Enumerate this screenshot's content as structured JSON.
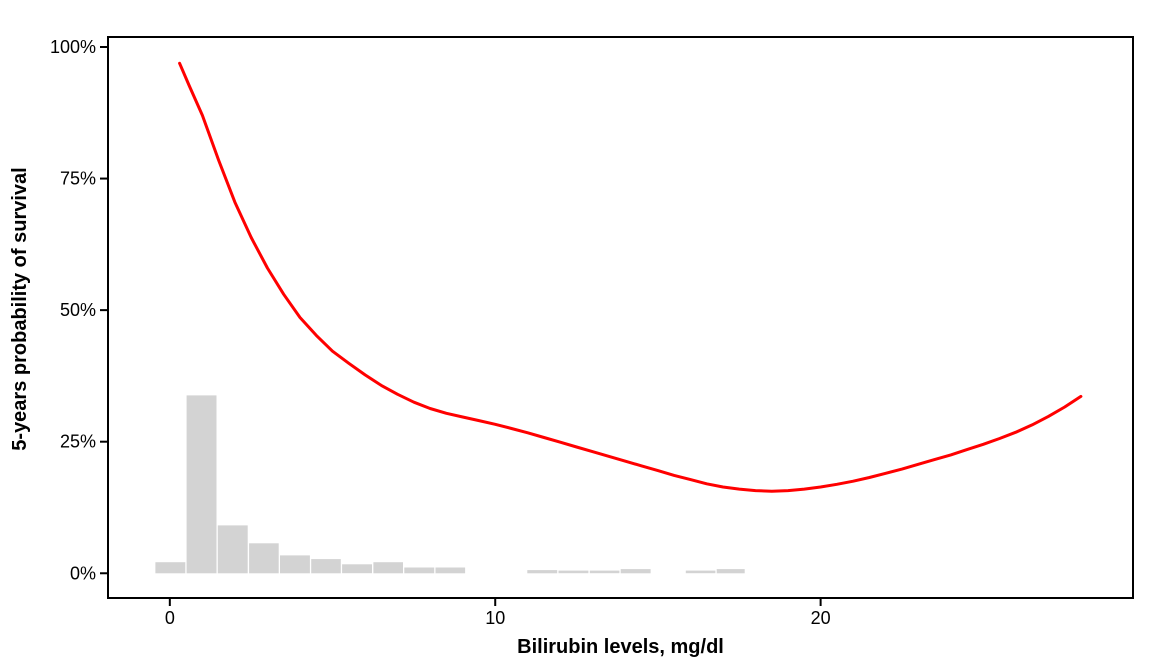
{
  "figure": {
    "x_axis_title": "Bilirubin levels, mg/dl",
    "y_axis_title": "5-years probability of survival"
  },
  "colors": {
    "curve": "#FF0000",
    "histogram_fill": "#D3D3D3",
    "axis": "#000000",
    "background": "#FFFFFF"
  },
  "chart_data": {
    "type": "line",
    "title": "",
    "xlabel": "Bilirubin levels, mg/dl",
    "ylabel": "5-years probability of survival",
    "grid": false,
    "legend": false,
    "xlim": [
      -1.9,
      29.6
    ],
    "ylim": [
      -4.7,
      101.9
    ],
    "x_ticks": [
      {
        "value": 0,
        "label": "0"
      },
      {
        "value": 10,
        "label": "10"
      },
      {
        "value": 20,
        "label": "20"
      }
    ],
    "y_ticks": [
      {
        "value": 0,
        "label": "0%"
      },
      {
        "value": 25,
        "label": "25%"
      },
      {
        "value": 50,
        "label": "50%"
      },
      {
        "value": 75,
        "label": "75%"
      },
      {
        "value": 100,
        "label": "100%"
      }
    ],
    "series": [
      {
        "name": "smoothed-survival-curve",
        "color": "#FF0000",
        "points": [
          [
            0.3,
            96.9
          ],
          [
            0.6,
            92.6
          ],
          [
            1.0,
            87.0
          ],
          [
            1.5,
            78.5
          ],
          [
            2.0,
            70.5
          ],
          [
            2.5,
            63.8
          ],
          [
            3.0,
            58.0
          ],
          [
            3.5,
            53.0
          ],
          [
            4.0,
            48.6
          ],
          [
            4.5,
            45.2
          ],
          [
            5.0,
            42.2
          ],
          [
            5.5,
            39.9
          ],
          [
            6.0,
            37.7
          ],
          [
            6.5,
            35.7
          ],
          [
            7.0,
            34.0
          ],
          [
            7.5,
            32.5
          ],
          [
            8.0,
            31.3
          ],
          [
            8.5,
            30.4
          ],
          [
            9.0,
            29.7
          ],
          [
            9.5,
            29.0
          ],
          [
            10.0,
            28.3
          ],
          [
            10.5,
            27.5
          ],
          [
            11.0,
            26.7
          ],
          [
            11.5,
            25.8
          ],
          [
            12.0,
            24.9
          ],
          [
            12.5,
            24.0
          ],
          [
            13.0,
            23.1
          ],
          [
            13.5,
            22.2
          ],
          [
            14.0,
            21.3
          ],
          [
            14.5,
            20.4
          ],
          [
            15.0,
            19.5
          ],
          [
            15.5,
            18.6
          ],
          [
            16.0,
            17.8
          ],
          [
            16.5,
            17.0
          ],
          [
            17.0,
            16.4
          ],
          [
            17.5,
            16.0
          ],
          [
            18.0,
            15.7
          ],
          [
            18.5,
            15.6
          ],
          [
            19.0,
            15.7
          ],
          [
            19.5,
            16.0
          ],
          [
            20.0,
            16.4
          ],
          [
            20.5,
            16.9
          ],
          [
            21.0,
            17.5
          ],
          [
            21.5,
            18.2
          ],
          [
            22.0,
            19.0
          ],
          [
            22.5,
            19.8
          ],
          [
            23.0,
            20.7
          ],
          [
            23.5,
            21.6
          ],
          [
            24.0,
            22.5
          ],
          [
            24.5,
            23.5
          ],
          [
            25.0,
            24.5
          ],
          [
            25.5,
            25.6
          ],
          [
            26.0,
            26.8
          ],
          [
            26.5,
            28.2
          ],
          [
            27.0,
            29.8
          ],
          [
            27.5,
            31.6
          ],
          [
            28.0,
            33.6
          ]
        ]
      }
    ],
    "histogram": {
      "name": "bilirubin-distribution",
      "color": "#D3D3D3",
      "bars": [
        {
          "x0": -0.46,
          "x1": 0.49,
          "height": 2.1
        },
        {
          "x0": 0.5,
          "x1": 1.45,
          "height": 33.8
        },
        {
          "x0": 1.46,
          "x1": 2.41,
          "height": 9.1
        },
        {
          "x0": 2.42,
          "x1": 3.36,
          "height": 5.7
        },
        {
          "x0": 3.37,
          "x1": 4.32,
          "height": 3.4
        },
        {
          "x0": 4.33,
          "x1": 5.27,
          "height": 2.7
        },
        {
          "x0": 5.28,
          "x1": 6.23,
          "height": 1.7
        },
        {
          "x0": 6.24,
          "x1": 7.18,
          "height": 2.1
        },
        {
          "x0": 7.19,
          "x1": 8.14,
          "height": 1.1
        },
        {
          "x0": 8.15,
          "x1": 9.09,
          "height": 1.1
        },
        {
          "x0": 10.97,
          "x1": 11.92,
          "height": 0.6
        },
        {
          "x0": 11.93,
          "x1": 12.88,
          "height": 0.5
        },
        {
          "x0": 12.89,
          "x1": 13.83,
          "height": 0.5
        },
        {
          "x0": 13.84,
          "x1": 14.79,
          "height": 0.8
        },
        {
          "x0": 15.84,
          "x1": 16.78,
          "height": 0.5
        },
        {
          "x0": 16.79,
          "x1": 17.68,
          "height": 0.8
        }
      ]
    }
  }
}
